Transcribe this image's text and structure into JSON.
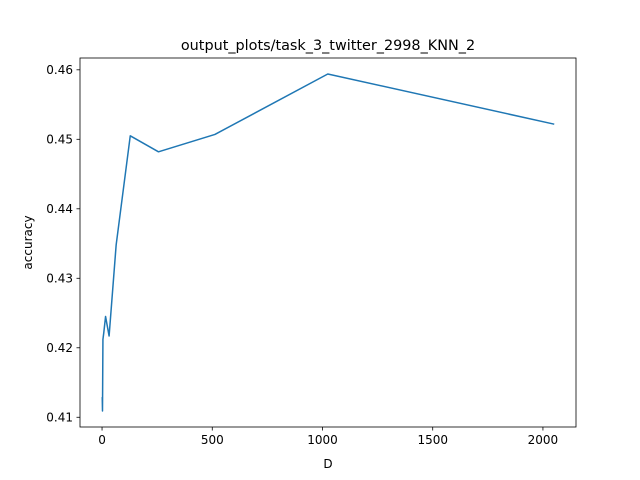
{
  "chart_data": {
    "type": "line",
    "title": "output_plots/task_3_twitter_2998_KNN_2",
    "xlabel": "D",
    "ylabel": "accuracy",
    "xlim": [
      -100,
      2150
    ],
    "ylim": [
      0.4086,
      0.4617
    ],
    "x_ticks": [
      0,
      500,
      1000,
      1500,
      2000
    ],
    "x_tick_labels": [
      "0",
      "500",
      "1000",
      "1500",
      "2000"
    ],
    "y_ticks": [
      0.41,
      0.42,
      0.43,
      0.44,
      0.45,
      0.46
    ],
    "y_tick_labels": [
      "0.41",
      "0.42",
      "0.43",
      "0.44",
      "0.45",
      "0.46"
    ],
    "grid": false,
    "series": [
      {
        "color": "#1f77b4",
        "x": [
          1,
          2,
          4,
          8,
          16,
          32,
          64,
          128,
          256,
          512,
          1024,
          2048
        ],
        "y": [
          0.4128,
          0.4109,
          0.4212,
          0.4222,
          0.4245,
          0.4217,
          0.4348,
          0.4505,
          0.4482,
          0.4507,
          0.4594,
          0.4522
        ]
      }
    ]
  }
}
